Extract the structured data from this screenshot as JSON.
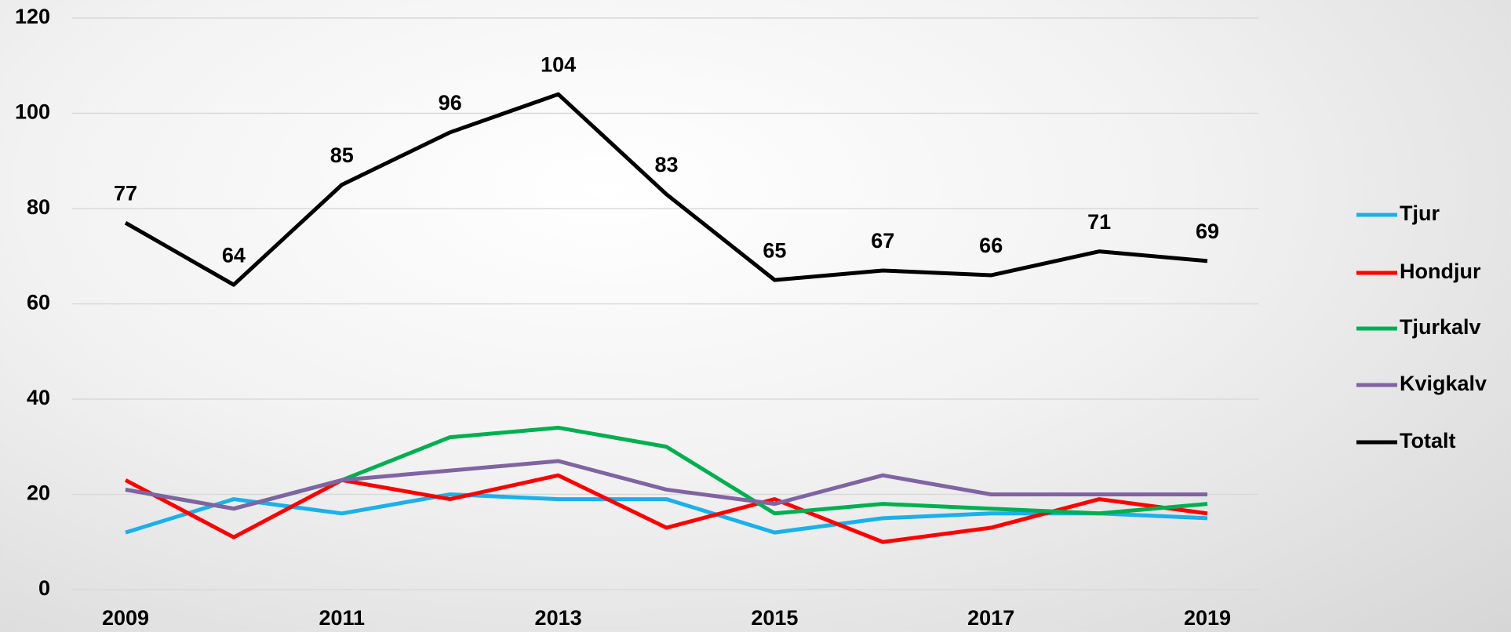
{
  "chart_data": {
    "type": "line",
    "x": [
      2009,
      2010,
      2011,
      2012,
      2013,
      2014,
      2015,
      2016,
      2017,
      2018,
      2019
    ],
    "xlim": [
      2009,
      2019
    ],
    "xticks": [
      2009,
      2011,
      2013,
      2015,
      2017,
      2019
    ],
    "ylim": [
      0,
      120
    ],
    "yticks": [
      0,
      20,
      40,
      60,
      80,
      100,
      120
    ],
    "grid": true,
    "legend": "right",
    "series": [
      {
        "name": "Tjur",
        "color": "#1ab0ec",
        "values": [
          12,
          19,
          16,
          20,
          19,
          19,
          12,
          15,
          16,
          16,
          15
        ]
      },
      {
        "name": "Hondjur",
        "color": "#ff0000",
        "values": [
          23,
          11,
          23,
          19,
          24,
          13,
          19,
          10,
          13,
          19,
          16
        ]
      },
      {
        "name": "Tjurkalv",
        "color": "#00b050",
        "values": [
          21,
          17,
          23,
          32,
          34,
          30,
          16,
          18,
          17,
          16,
          18
        ]
      },
      {
        "name": "Kvigkalv",
        "color": "#8064a2",
        "values": [
          21,
          17,
          23,
          25,
          27,
          21,
          18,
          24,
          20,
          20,
          20
        ]
      },
      {
        "name": "Totalt",
        "color": "#000000",
        "values": [
          77,
          64,
          85,
          96,
          104,
          83,
          65,
          67,
          66,
          71,
          69
        ],
        "data_labels": true
      }
    ]
  }
}
